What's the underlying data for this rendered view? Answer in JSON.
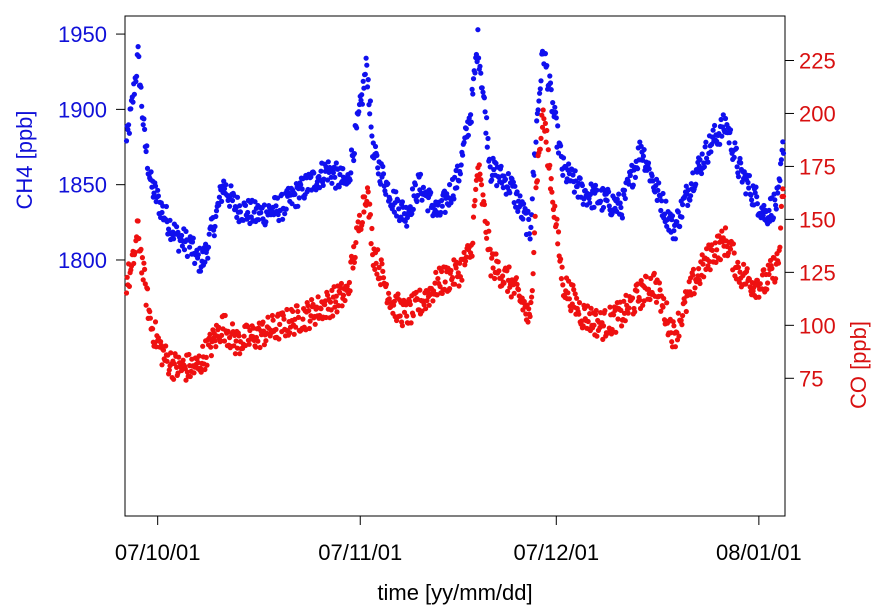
{
  "chart_data": {
    "type": "scatter",
    "xlabel": "time [yy/mm/dd]",
    "x_ticks": [
      "07/10/01",
      "07/11/01",
      "07/12/01",
      "08/01/01"
    ],
    "xlim": [
      "2007-09-26",
      "2008-01-05"
    ],
    "left_axis": {
      "label": "CH4 [ppb]",
      "color": "#1010d8",
      "ticks": [
        1800,
        1850,
        1900,
        1950
      ],
      "ylim": [
        1630,
        1962
      ]
    },
    "right_axis": {
      "label": "CO [ppb]",
      "color": "#d81010",
      "ticks": [
        75,
        100,
        125,
        150,
        175,
        200,
        225
      ],
      "ylim": [
        10,
        246
      ]
    },
    "grid": false,
    "legend": "none",
    "series": [
      {
        "name": "CH4",
        "axis": "left",
        "color": "#1010ee",
        "x": [
          "2007-09-26",
          "2007-09-27",
          "2007-09-28",
          "2007-09-29",
          "2007-09-30",
          "2007-10-02",
          "2007-10-04",
          "2007-10-06",
          "2007-10-07",
          "2007-10-08",
          "2007-10-09",
          "2007-10-10",
          "2007-10-11",
          "2007-10-13",
          "2007-10-16",
          "2007-10-20",
          "2007-10-24",
          "2007-10-27",
          "2007-10-30",
          "2007-11-01",
          "2007-11-02",
          "2007-11-03",
          "2007-11-06",
          "2007-11-08",
          "2007-11-10",
          "2007-11-13",
          "2007-11-16",
          "2007-11-18",
          "2007-11-19",
          "2007-11-21",
          "2007-11-24",
          "2007-11-26",
          "2007-11-27",
          "2007-11-28",
          "2007-11-29",
          "2007-12-02",
          "2007-12-05",
          "2007-12-08",
          "2007-12-11",
          "2007-12-14",
          "2007-12-16",
          "2007-12-19",
          "2007-12-22",
          "2007-12-25",
          "2007-12-27",
          "2007-12-29",
          "2007-12-31",
          "2008-01-02",
          "2008-01-04",
          "2008-01-05"
        ],
        "y": [
          1870,
          1900,
          1935,
          1880,
          1850,
          1830,
          1815,
          1810,
          1800,
          1800,
          1815,
          1830,
          1850,
          1835,
          1830,
          1835,
          1850,
          1860,
          1850,
          1900,
          1930,
          1870,
          1840,
          1830,
          1850,
          1830,
          1855,
          1900,
          1945,
          1860,
          1850,
          1830,
          1820,
          1890,
          1940,
          1860,
          1845,
          1840,
          1835,
          1875,
          1850,
          1820,
          1855,
          1880,
          1890,
          1860,
          1845,
          1830,
          1840,
          1890
        ]
      },
      {
        "name": "CO",
        "axis": "right",
        "color": "#ee1010",
        "x": [
          "2007-09-26",
          "2007-09-27",
          "2007-09-28",
          "2007-09-29",
          "2007-09-30",
          "2007-10-02",
          "2007-10-04",
          "2007-10-06",
          "2007-10-07",
          "2007-10-08",
          "2007-10-09",
          "2007-10-10",
          "2007-10-11",
          "2007-10-13",
          "2007-10-16",
          "2007-10-20",
          "2007-10-24",
          "2007-10-27",
          "2007-10-30",
          "2007-11-01",
          "2007-11-02",
          "2007-11-03",
          "2007-11-06",
          "2007-11-08",
          "2007-11-10",
          "2007-11-13",
          "2007-11-16",
          "2007-11-18",
          "2007-11-19",
          "2007-11-21",
          "2007-11-24",
          "2007-11-26",
          "2007-11-27",
          "2007-11-28",
          "2007-11-29",
          "2007-12-02",
          "2007-12-05",
          "2007-12-08",
          "2007-12-11",
          "2007-12-14",
          "2007-12-16",
          "2007-12-19",
          "2007-12-22",
          "2007-12-25",
          "2007-12-27",
          "2007-12-29",
          "2007-12-31",
          "2008-01-02",
          "2008-01-04",
          "2008-01-05"
        ],
        "y": [
          120,
          125,
          145,
          120,
          100,
          85,
          80,
          80,
          80,
          85,
          90,
          95,
          100,
          92,
          95,
          100,
          105,
          110,
          115,
          150,
          165,
          135,
          110,
          105,
          110,
          120,
          125,
          135,
          175,
          130,
          120,
          110,
          100,
          170,
          200,
          120,
          105,
          100,
          105,
          115,
          120,
          95,
          120,
          135,
          140,
          125,
          120,
          120,
          130,
          175
        ]
      }
    ]
  }
}
